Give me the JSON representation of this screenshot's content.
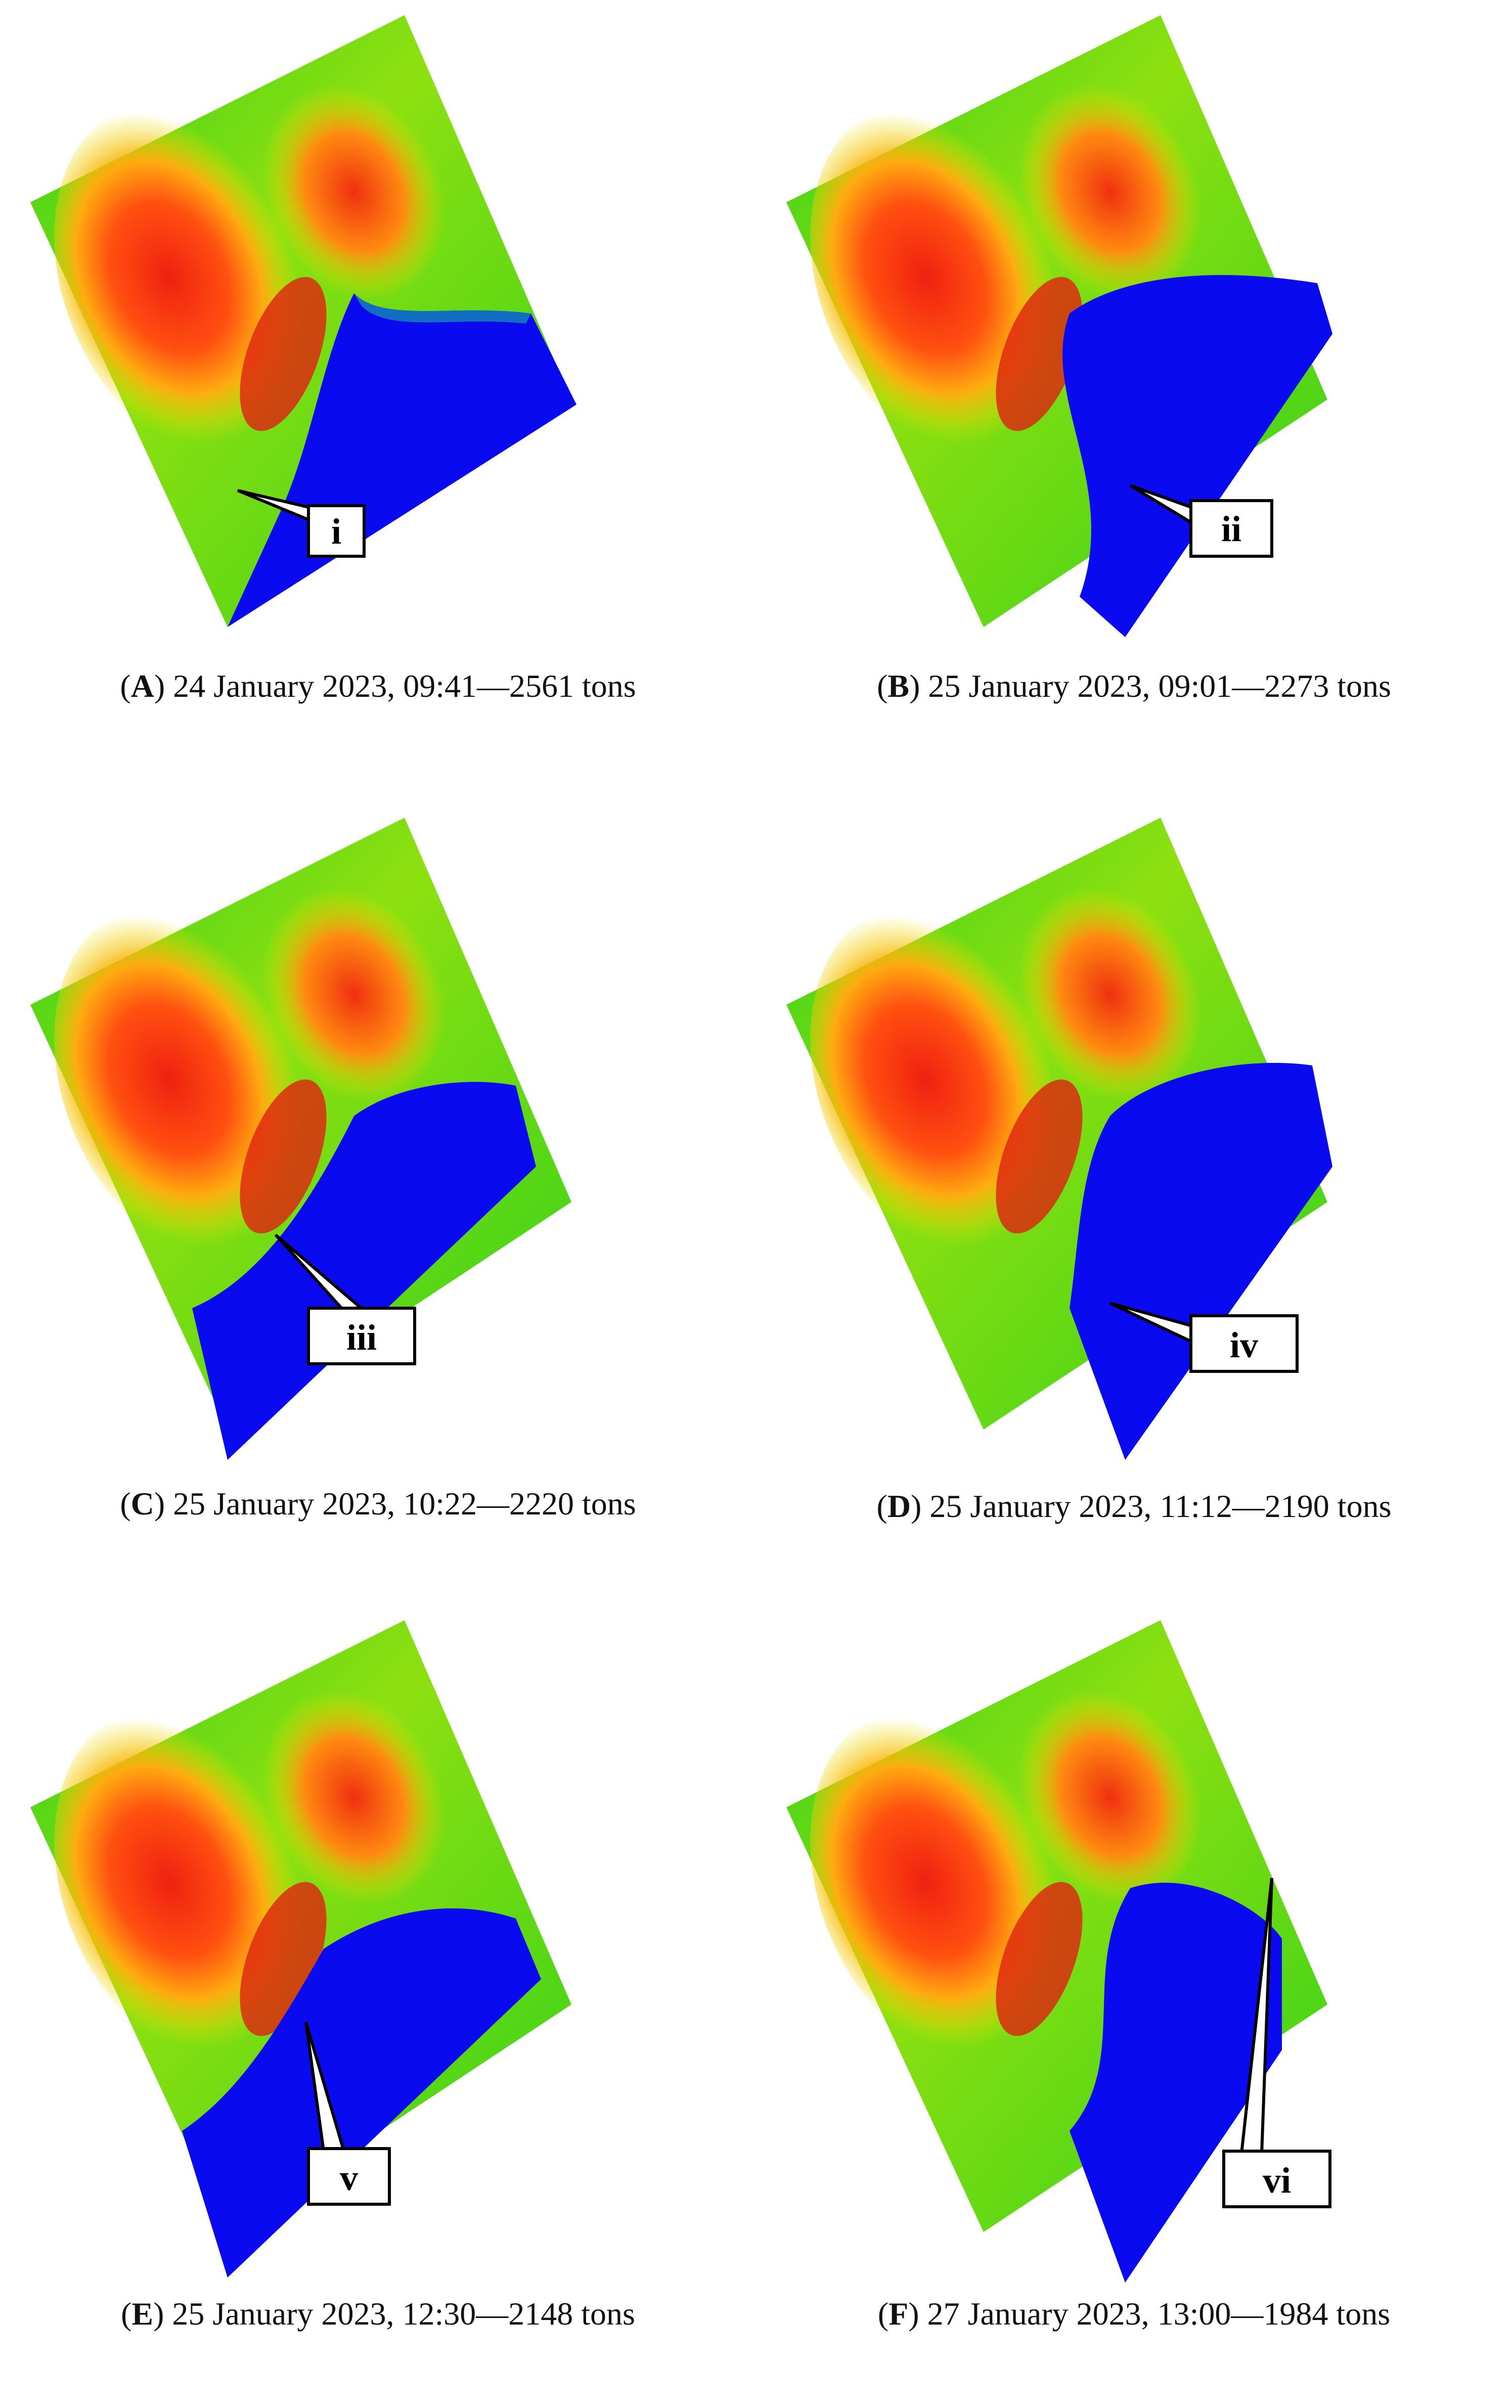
{
  "panels": [
    {
      "letter": "A",
      "caption": "24 January 2023, 09:41—2561 tons",
      "label": "i"
    },
    {
      "letter": "B",
      "caption": "25 January 2023, 09:01—2273 tons",
      "label": "ii"
    },
    {
      "letter": "C",
      "caption": "25 January 2023, 10:22—2220 tons",
      "label": "iii"
    },
    {
      "letter": "D",
      "caption": "25 January 2023, 11:12—2190 tons",
      "label": "iv"
    },
    {
      "letter": "E",
      "caption": "25 January 2023, 12:30—2148 tons",
      "label": "v"
    },
    {
      "letter": "F",
      "caption": "27 January 2023, 13:00—1984 tons",
      "label": "vi"
    }
  ],
  "colors": {
    "blue_region": "#0a0af0",
    "green": "#33d11a",
    "yellow": "#e8e800",
    "orange": "#ff7a10",
    "red": "#f02010",
    "callout_fill": "#ffffff",
    "callout_stroke": "#000000"
  }
}
